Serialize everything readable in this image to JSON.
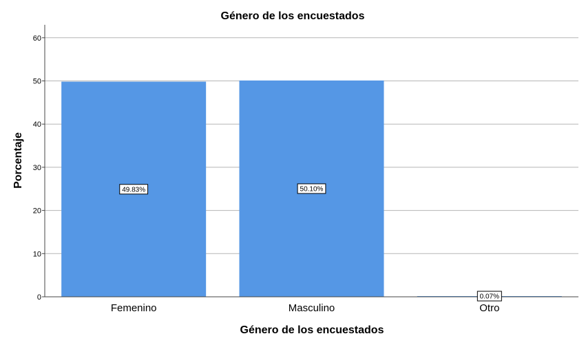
{
  "chart_data": {
    "type": "bar",
    "title": "Género de los encuestados",
    "xlabel": "Género de los encuestados",
    "ylabel": "Porcentaje",
    "categories": [
      "Femenino",
      "Masculino",
      "Otro"
    ],
    "values": [
      49.83,
      50.1,
      0.07
    ],
    "data_labels": [
      "49.83%",
      "50.10%",
      "0.07%"
    ],
    "yticks": [
      "0",
      "10",
      "20",
      "30",
      "40",
      "50",
      "60"
    ],
    "ylim": [
      0,
      63
    ],
    "grid": true,
    "bar_color": "#5597e5"
  }
}
